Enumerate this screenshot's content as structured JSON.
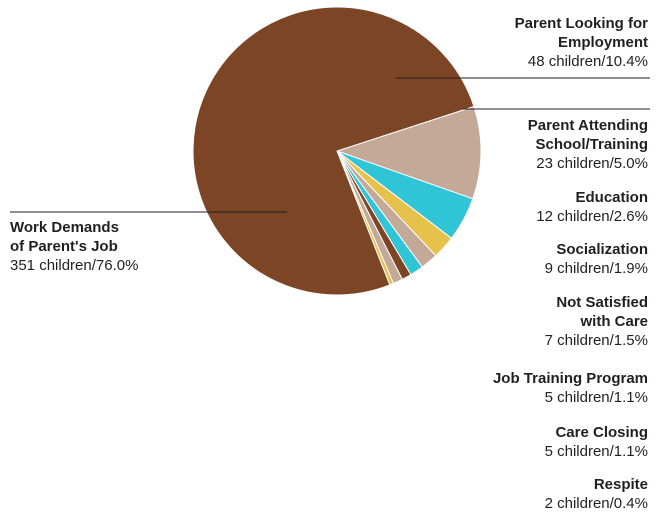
{
  "chart_data": {
    "type": "pie",
    "start_angle_deg": 72,
    "direction": "clockwise",
    "slices": [
      {
        "key": "looking",
        "label": "Parent Looking for\nEmployment",
        "value_text": "48 children/10.4%",
        "children": 48,
        "percent": 10.4,
        "color": "#c4a898"
      },
      {
        "key": "school",
        "label": "Parent Attending\nSchool/Training",
        "value_text": "23 children/5.0%",
        "children": 23,
        "percent": 5.0,
        "color": "#2fc4d6"
      },
      {
        "key": "education",
        "label": "Education",
        "value_text": "12 children/2.6%",
        "children": 12,
        "percent": 2.6,
        "color": "#e6c24d"
      },
      {
        "key": "social",
        "label": "Socialization",
        "value_text": "9 children/1.9%",
        "children": 9,
        "percent": 1.9,
        "color": "#c4a898"
      },
      {
        "key": "notsat",
        "label": "Not Satisfied\nwith Care",
        "value_text": "7 children/1.5%",
        "children": 7,
        "percent": 1.5,
        "color": "#2fc4d6"
      },
      {
        "key": "jobtrain",
        "label": "Job Training Program",
        "value_text": "5 children/1.1%",
        "children": 5,
        "percent": 1.1,
        "color": "#7b4526"
      },
      {
        "key": "closing",
        "label": "Care Closing",
        "value_text": "5 children/1.1%",
        "children": 5,
        "percent": 1.1,
        "color": "#c4a898"
      },
      {
        "key": "respite",
        "label": "Respite",
        "value_text": "2 children/0.4%",
        "children": 2,
        "percent": 0.4,
        "color": "#e6c24d"
      },
      {
        "key": "work",
        "label": "Work Demands\nof Parent's Job",
        "value_text": "351 children/76.0%",
        "children": 351,
        "percent": 76.0,
        "color": "#7b4526"
      }
    ]
  }
}
